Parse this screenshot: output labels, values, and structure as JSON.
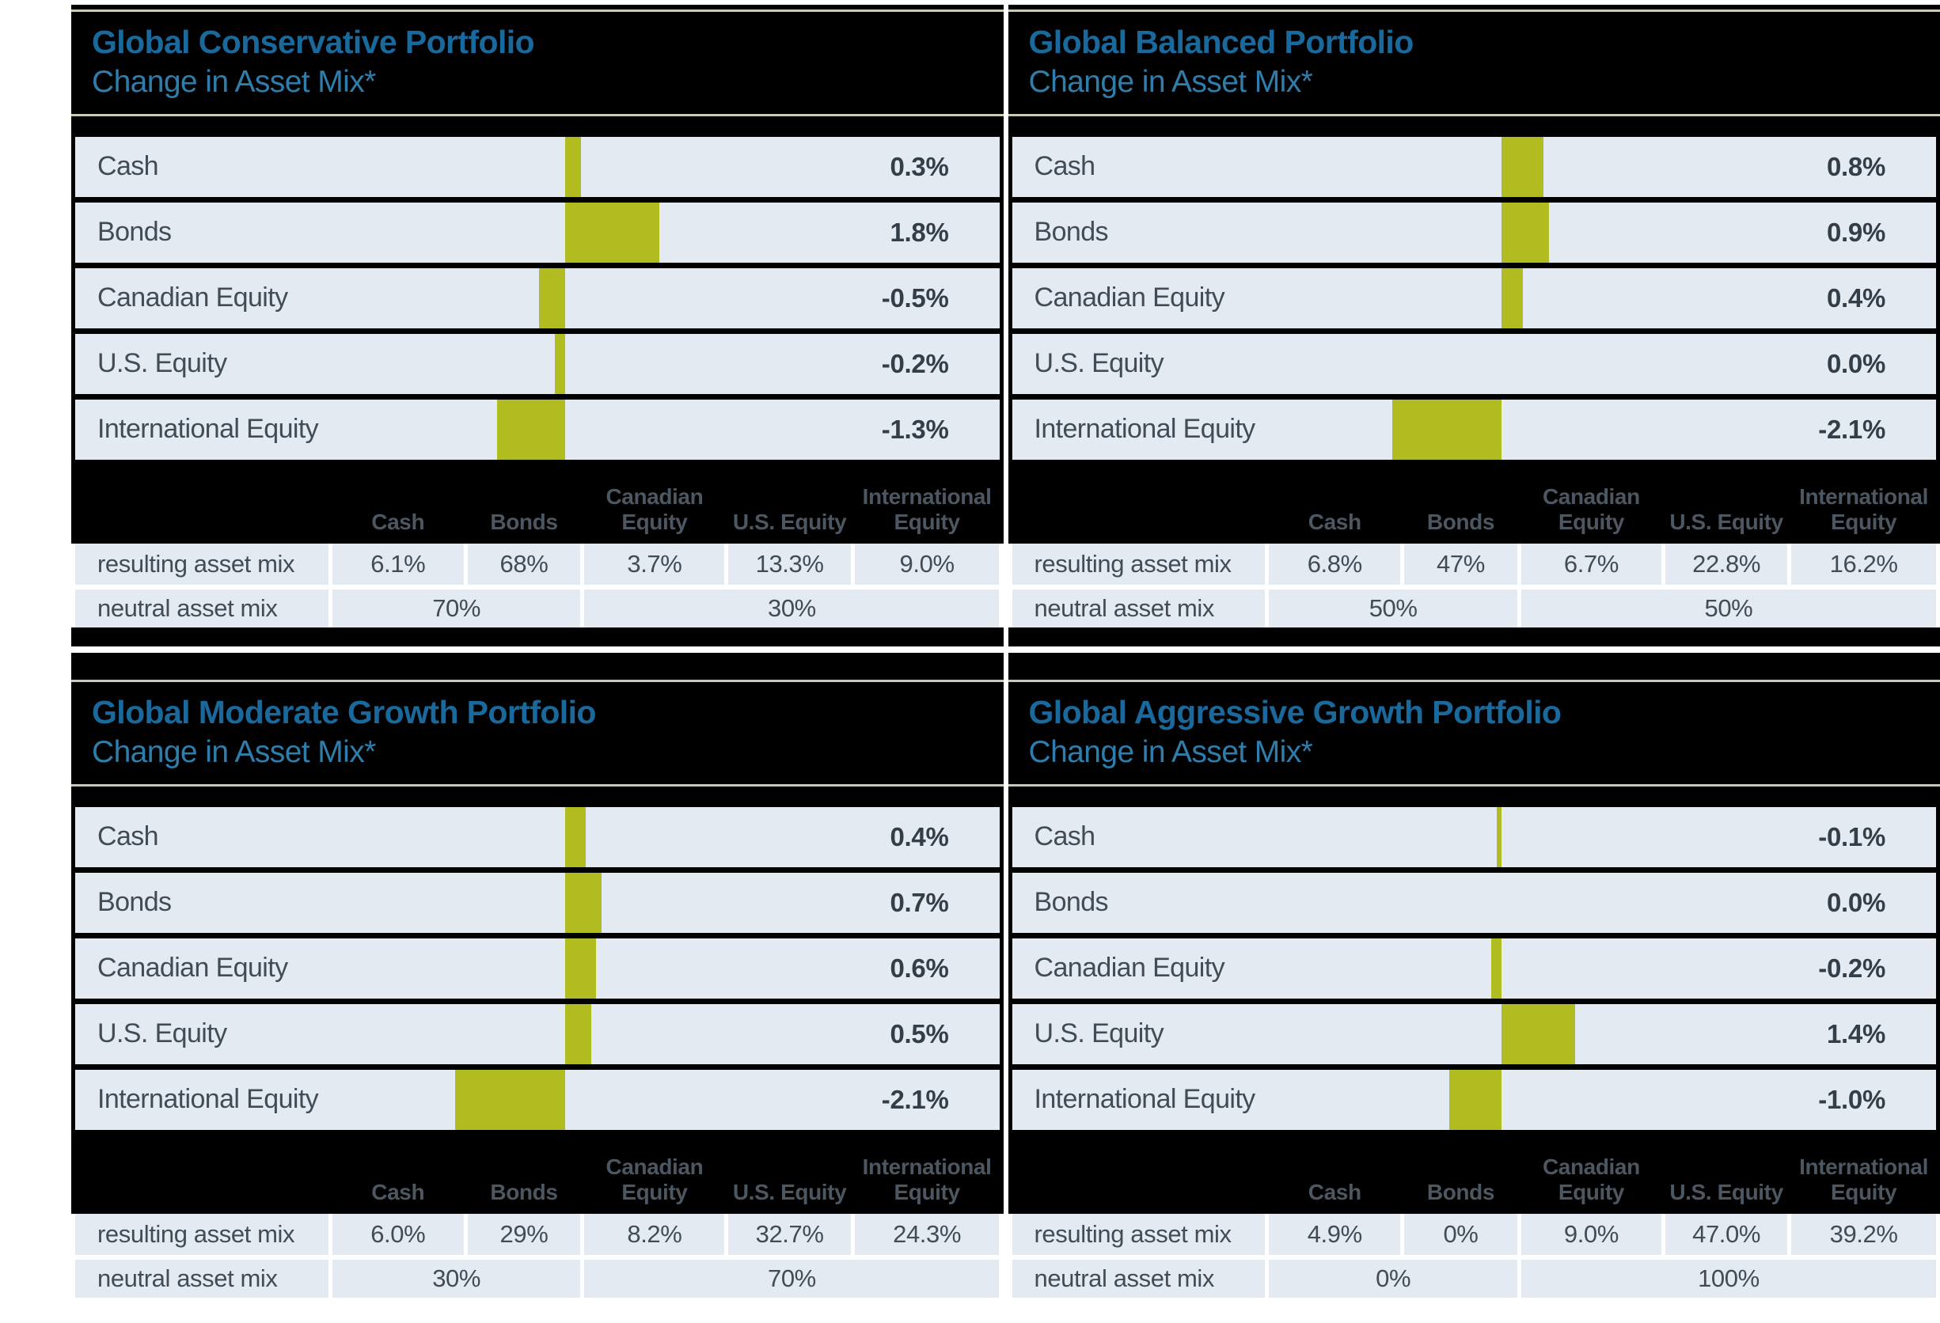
{
  "shared": {
    "subtitle": "Change in Asset Mix*",
    "columns": [
      "Cash",
      "Bonds",
      "Canadian Equity",
      "U.S. Equity",
      "International Equity"
    ],
    "resulting_label": "resulting asset mix",
    "neutral_label": "neutral asset mix",
    "colors": {
      "bar": "#b1bc20",
      "title_blue": "#19699d",
      "subtitle_blue": "#2f7dab",
      "row_bg": "#e4eaf2",
      "divider_khaki": "#c9c9b6",
      "panel_bg": "#000000"
    }
  },
  "chart_data": [
    {
      "type": "bar",
      "orientation": "horizontal",
      "title": "Global Conservative Portfolio",
      "subtitle": "Change in Asset Mix*",
      "categories": [
        "Cash",
        "Bonds",
        "Canadian Equity",
        "U.S. Equity",
        "International Equity"
      ],
      "values": [
        0.3,
        1.8,
        -0.5,
        -0.2,
        -1.3
      ],
      "value_labels": [
        "0.3%",
        "1.8%",
        "-0.5%",
        "-0.2%",
        "-1.3%"
      ],
      "table": {
        "columns": [
          "Cash",
          "Bonds",
          "Canadian Equity",
          "U.S. Equity",
          "International Equity"
        ],
        "resulting": [
          "6.1%",
          "68%",
          "3.7%",
          "13.3%",
          "9.0%"
        ],
        "neutral_cash_bonds": "70%",
        "neutral_equities": "30%"
      }
    },
    {
      "type": "bar",
      "orientation": "horizontal",
      "title": "Global Balanced Portfolio",
      "subtitle": "Change in Asset Mix*",
      "categories": [
        "Cash",
        "Bonds",
        "Canadian Equity",
        "U.S. Equity",
        "International Equity"
      ],
      "values": [
        0.8,
        0.9,
        0.4,
        0.0,
        -2.1
      ],
      "value_labels": [
        "0.8%",
        "0.9%",
        "0.4%",
        "0.0%",
        "-2.1%"
      ],
      "table": {
        "columns": [
          "Cash",
          "Bonds",
          "Canadian Equity",
          "U.S. Equity",
          "International Equity"
        ],
        "resulting": [
          "6.8%",
          "47%",
          "6.7%",
          "22.8%",
          "16.2%"
        ],
        "neutral_cash_bonds": "50%",
        "neutral_equities": "50%"
      }
    },
    {
      "type": "bar",
      "orientation": "horizontal",
      "title": "Global Moderate Growth Portfolio",
      "subtitle": "Change in Asset Mix*",
      "categories": [
        "Cash",
        "Bonds",
        "Canadian Equity",
        "U.S. Equity",
        "International Equity"
      ],
      "values": [
        0.4,
        0.7,
        0.6,
        0.5,
        -2.1
      ],
      "value_labels": [
        "0.4%",
        "0.7%",
        "0.6%",
        "0.5%",
        "-2.1%"
      ],
      "table": {
        "columns": [
          "Cash",
          "Bonds",
          "Canadian Equity",
          "U.S. Equity",
          "International Equity"
        ],
        "resulting": [
          "6.0%",
          "29%",
          "8.2%",
          "32.7%",
          "24.3%"
        ],
        "neutral_cash_bonds": "30%",
        "neutral_equities": "70%"
      }
    },
    {
      "type": "bar",
      "orientation": "horizontal",
      "title": "Global Aggressive Growth Portfolio",
      "subtitle": "Change in Asset Mix*",
      "categories": [
        "Cash",
        "Bonds",
        "Canadian Equity",
        "U.S. Equity",
        "International Equity"
      ],
      "values": [
        -0.1,
        0.0,
        -0.2,
        1.4,
        -1.0
      ],
      "value_labels": [
        "-0.1%",
        "0.0%",
        "-0.2%",
        "1.4%",
        "-1.0%"
      ],
      "table": {
        "columns": [
          "Cash",
          "Bonds",
          "Canadian Equity",
          "U.S. Equity",
          "International Equity"
        ],
        "resulting": [
          "4.9%",
          "0%",
          "9.0%",
          "47.0%",
          "39.2%"
        ],
        "neutral_cash_bonds": "0%",
        "neutral_equities": "100%"
      }
    }
  ]
}
